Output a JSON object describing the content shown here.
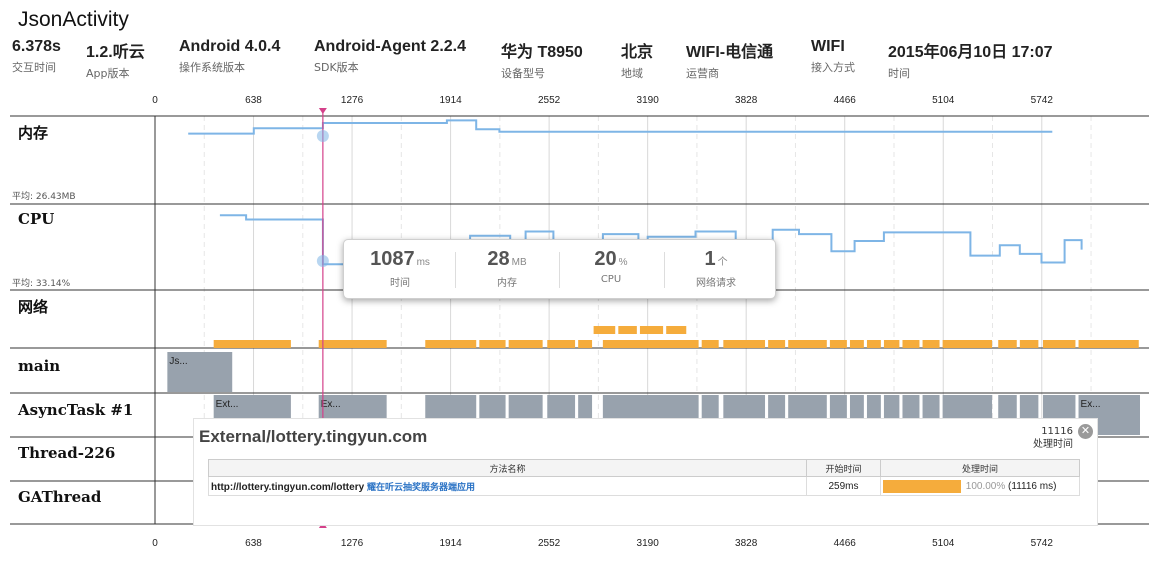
{
  "app": {
    "title": "JsonActivity"
  },
  "meta": [
    {
      "value": "6.378s",
      "label": "交互时间"
    },
    {
      "value": "1.2.听云",
      "label": "App版本"
    },
    {
      "value": "Android 4.0.4",
      "label": "操作系统版本"
    },
    {
      "value": "Android-Agent 2.2.4",
      "label": "SDK版本"
    },
    {
      "value": "华为 T8950",
      "label": "设备型号"
    },
    {
      "value": "北京",
      "label": "地域"
    },
    {
      "value": "WIFI-电信通",
      "label": "运营商"
    },
    {
      "value": "WIFI",
      "label": "接入方式"
    },
    {
      "value": "2015年06月10日 17:07",
      "label": "时间"
    }
  ],
  "axis": {
    "ticks": [
      "0",
      "638",
      "1276",
      "1914",
      "2552",
      "3190",
      "3828",
      "4466",
      "5104",
      "5742"
    ],
    "max_ms": 6378,
    "cursor_ms": 1087
  },
  "rows": {
    "memory": {
      "label": "内存",
      "avg": "平均: 26.43MB"
    },
    "cpu": {
      "label": "CPU",
      "avg": "平均: 33.14%"
    },
    "network": {
      "label": "网络"
    },
    "main": {
      "label": "main"
    },
    "async": {
      "label": "AsyncTask #1"
    },
    "thread226": {
      "label": "Thread-226"
    },
    "gathread": {
      "label": "GAThread"
    }
  },
  "chart_data": {
    "type": "timeline",
    "x_unit": "ms",
    "memory_line": [
      [
        215,
        0.2
      ],
      [
        640,
        0.2
      ],
      [
        640,
        0.14
      ],
      [
        1087,
        0.14
      ],
      [
        1087,
        0.08
      ],
      [
        1890,
        0.08
      ],
      [
        1890,
        0.05
      ],
      [
        2080,
        0.05
      ],
      [
        2080,
        0.15
      ],
      [
        2230,
        0.15
      ],
      [
        2230,
        0.18
      ],
      [
        5810,
        0.18
      ]
    ],
    "cpu_line": [
      [
        420,
        0.13
      ],
      [
        590,
        0.13
      ],
      [
        590,
        0.18
      ],
      [
        1087,
        0.18
      ],
      [
        1087,
        0.7
      ],
      [
        1290,
        0.7
      ],
      [
        1290,
        0.56
      ],
      [
        1495,
        0.56
      ],
      [
        1495,
        0.65
      ],
      [
        1660,
        0.65
      ],
      [
        1660,
        0.6
      ],
      [
        1830,
        0.6
      ],
      [
        1830,
        0.45
      ],
      [
        2040,
        0.45
      ],
      [
        2040,
        0.37
      ],
      [
        2300,
        0.37
      ],
      [
        2300,
        0.45
      ],
      [
        2400,
        0.45
      ],
      [
        2400,
        0.32
      ],
      [
        2580,
        0.32
      ],
      [
        2580,
        0.45
      ],
      [
        2900,
        0.45
      ],
      [
        2900,
        0.35
      ],
      [
        3130,
        0.35
      ],
      [
        3130,
        0.45
      ],
      [
        3190,
        0.45
      ],
      [
        3190,
        0.38
      ],
      [
        3500,
        0.38
      ],
      [
        3500,
        0.32
      ],
      [
        3760,
        0.32
      ],
      [
        3760,
        0.65
      ],
      [
        3920,
        0.65
      ],
      [
        3920,
        0.45
      ],
      [
        4000,
        0.45
      ],
      [
        4000,
        0.3
      ],
      [
        4170,
        0.3
      ],
      [
        4170,
        0.35
      ],
      [
        4380,
        0.35
      ],
      [
        4380,
        0.55
      ],
      [
        4530,
        0.55
      ],
      [
        4530,
        0.43
      ],
      [
        4720,
        0.43
      ],
      [
        4720,
        0.33
      ],
      [
        5280,
        0.33
      ],
      [
        5280,
        0.6
      ],
      [
        5470,
        0.6
      ],
      [
        5470,
        0.48
      ],
      [
        5600,
        0.48
      ],
      [
        5600,
        0.58
      ],
      [
        5740,
        0.58
      ],
      [
        5740,
        0.68
      ],
      [
        5890,
        0.68
      ],
      [
        5890,
        0.42
      ],
      [
        6000,
        0.42
      ],
      [
        6000,
        0.43
      ],
      [
        6000,
        0.53
      ]
    ],
    "network_bars": [
      [
        380,
        880
      ],
      [
        1060,
        1500
      ],
      [
        1750,
        2080
      ],
      [
        2100,
        2270
      ],
      [
        2290,
        2510
      ],
      [
        2540,
        2720
      ],
      [
        2740,
        2830
      ],
      [
        2900,
        3520
      ],
      [
        3540,
        3650
      ],
      [
        3680,
        3950
      ],
      [
        3970,
        4080
      ],
      [
        4100,
        4350
      ],
      [
        4370,
        4480
      ],
      [
        4500,
        4590
      ],
      [
        4610,
        4700
      ],
      [
        4720,
        4820
      ],
      [
        4840,
        4950
      ],
      [
        4970,
        5080
      ],
      [
        5100,
        5420
      ],
      [
        5460,
        5580
      ],
      [
        5600,
        5720
      ],
      [
        5750,
        5960
      ],
      [
        5980,
        6370
      ]
    ],
    "network_bars_upper": [
      [
        2840,
        2980
      ],
      [
        3000,
        3120
      ],
      [
        3140,
        3290
      ],
      [
        3310,
        3440
      ]
    ],
    "thread_main": [
      [
        80,
        500,
        "Js..."
      ]
    ],
    "thread_async": [
      [
        380,
        880,
        "Ext..."
      ],
      [
        1060,
        1500,
        "Ex..."
      ],
      [
        1750,
        2080,
        ""
      ],
      [
        2100,
        2270,
        ""
      ],
      [
        2290,
        2510,
        ""
      ],
      [
        2540,
        2720,
        ""
      ],
      [
        2740,
        2830,
        ""
      ],
      [
        2900,
        3520,
        ""
      ],
      [
        3540,
        3650,
        ""
      ],
      [
        3680,
        3950,
        ""
      ],
      [
        3970,
        4080,
        ""
      ],
      [
        4100,
        4350,
        ""
      ],
      [
        4370,
        4480,
        ""
      ],
      [
        4500,
        4590,
        ""
      ],
      [
        4610,
        4700,
        ""
      ],
      [
        4720,
        4820,
        ""
      ],
      [
        4840,
        4950,
        ""
      ],
      [
        4970,
        5080,
        ""
      ],
      [
        5100,
        5420,
        ""
      ],
      [
        5460,
        5580,
        ""
      ],
      [
        5600,
        5720,
        ""
      ],
      [
        5750,
        5960,
        ""
      ],
      [
        5980,
        6378,
        "Ex..."
      ]
    ],
    "thread_ga": [
      [
        2860,
        2910
      ]
    ]
  },
  "tooltip": {
    "time": {
      "value": "1087",
      "unit": "ms",
      "label": "时间"
    },
    "memory": {
      "value": "28",
      "unit": "MB",
      "label": "内存"
    },
    "cpu": {
      "value": "20",
      "unit": "%",
      "label": "CPU"
    },
    "requests": {
      "value": "1",
      "unit": "个",
      "label": "网络请求"
    }
  },
  "detail": {
    "title": "External/lottery.tingyun.com",
    "duration_value": "11116",
    "duration_label": "处理时间",
    "columns": [
      "方法名称",
      "开始时间",
      "处理时间"
    ],
    "row": {
      "url": "http://lottery.tingyun.com/lottery",
      "app": "耀在听云抽奖服务器端应用",
      "start": "259ms",
      "percent": "100.00%",
      "duration": "(11116 ms)",
      "fill": 1.0
    }
  },
  "colors": {
    "line": "#7eb5e6",
    "network": "#f5ac3c",
    "thread": "#98a2ad",
    "cursor": "#d4418a"
  }
}
